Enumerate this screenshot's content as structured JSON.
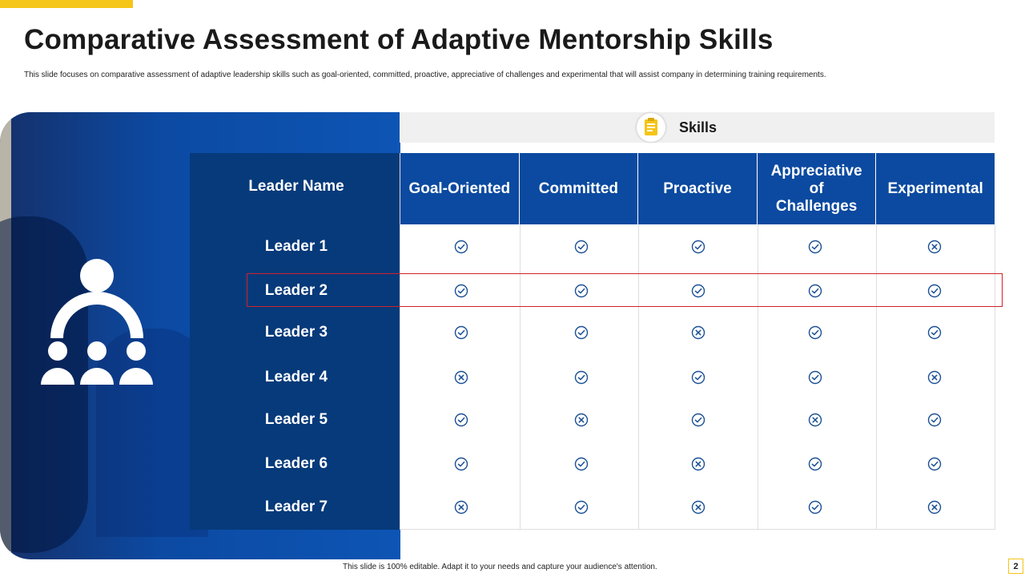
{
  "slide": {
    "title": "Comparative Assessment of Adaptive Mentorship Skills",
    "subtitle": "This slide focuses on comparative assessment of adaptive leadership skills such as goal-oriented, committed,  proactive, appreciative of challenges and experimental that will assist company in determining training requirements.",
    "footer": "This slide is 100% editable.  Adapt it to your needs and capture your audience's attention.",
    "page_number": "2",
    "accent_color": "#f5c518",
    "primary_color": "#0b4aa0",
    "dark_color": "#063a7a",
    "highlight_color": "#d0212a"
  },
  "skills_header": {
    "label": "Skills",
    "icon": "clipboard-icon"
  },
  "table": {
    "leader_header": "Leader Name",
    "columns": [
      "Goal-Oriented",
      "Committed",
      "Proactive",
      "Appreciative of Challenges",
      "Experimental"
    ],
    "rows": [
      {
        "name": "Leader 1",
        "marks": [
          "check",
          "check",
          "check",
          "check",
          "cross"
        ]
      },
      {
        "name": "Leader 2",
        "marks": [
          "check",
          "check",
          "check",
          "check",
          "check"
        ]
      },
      {
        "name": "Leader 3",
        "marks": [
          "check",
          "check",
          "cross",
          "check",
          "check"
        ]
      },
      {
        "name": "Leader 4",
        "marks": [
          "cross",
          "check",
          "check",
          "check",
          "cross"
        ]
      },
      {
        "name": "Leader 5",
        "marks": [
          "check",
          "cross",
          "check",
          "cross",
          "check"
        ]
      },
      {
        "name": "Leader 6",
        "marks": [
          "check",
          "check",
          "cross",
          "check",
          "check"
        ]
      },
      {
        "name": "Leader 7",
        "marks": [
          "cross",
          "check",
          "cross",
          "check",
          "cross"
        ]
      }
    ],
    "highlighted_row": "Leader 2"
  },
  "icons": {
    "check": "check-circle-icon",
    "cross": "x-circle-icon",
    "people": "mentorship-group-icon"
  }
}
